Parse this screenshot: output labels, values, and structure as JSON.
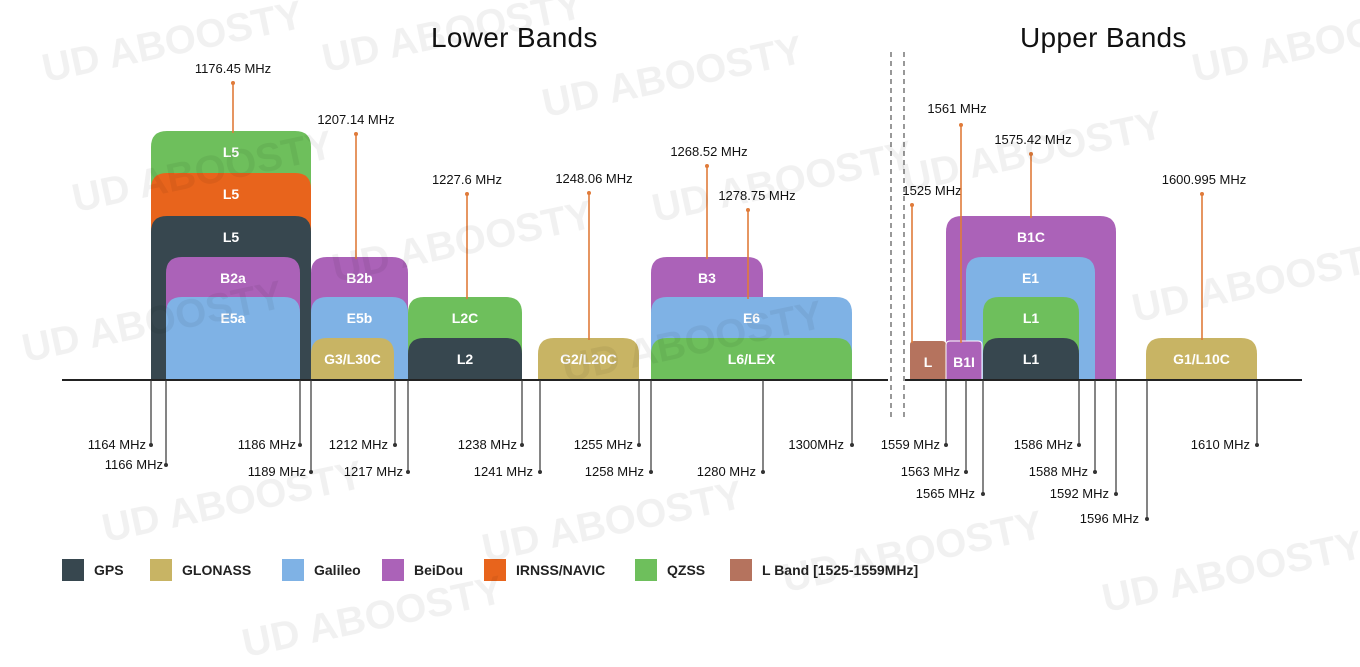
{
  "titles": {
    "lower": "Lower Bands",
    "upper": "Upper Bands"
  },
  "watermark": "ABOOSTY",
  "colors": {
    "GPS": "#37474f",
    "GLONASS": "#c8b464",
    "Galileo": "#7fb2e5",
    "BeiDou": "#ab62b8",
    "IRNSS/NAVIC": "#e8641c",
    "QZSS": "#6ebf5c",
    "L Band": "#b5735e",
    "axis": "#222222",
    "center_line": "#e07b3a"
  },
  "legend": [
    {
      "label": "GPS",
      "color": "#37474f"
    },
    {
      "label": "GLONASS",
      "color": "#c8b464"
    },
    {
      "label": "Galileo",
      "color": "#7fb2e5"
    },
    {
      "label": "BeiDou",
      "color": "#ab62b8"
    },
    {
      "label": "IRNSS/NAVIC",
      "color": "#e8641c"
    },
    {
      "label": "QZSS",
      "color": "#6ebf5c"
    },
    {
      "label": "L Band [1525-1559MHz]",
      "color": "#b5735e"
    }
  ],
  "bands": [
    {
      "label": "L5",
      "system": "QZSS",
      "from": "1164 MHz",
      "to": "1189 MHz",
      "layer": 6
    },
    {
      "label": "L5",
      "system": "IRNSS/NAVIC",
      "from": "1164 MHz",
      "to": "1189 MHz",
      "layer": 5
    },
    {
      "label": "L5",
      "system": "GPS",
      "from": "1164 MHz",
      "to": "1189 MHz",
      "layer": 4
    },
    {
      "label": "B2a",
      "system": "BeiDou",
      "from": "1166 MHz",
      "to": "1186 MHz",
      "layer": 3
    },
    {
      "label": "E5a",
      "system": "Galileo",
      "from": "1166 MHz",
      "to": "1186 MHz",
      "layer": 2
    },
    {
      "label": "B2b",
      "system": "BeiDou",
      "from": "1189 MHz",
      "to": "1217 MHz",
      "layer": 3
    },
    {
      "label": "E5b",
      "system": "Galileo",
      "from": "1189 MHz",
      "to": "1217 MHz",
      "layer": 2
    },
    {
      "label": "G3/L30C",
      "system": "GLONASS",
      "from": "1189 MHz",
      "to": "1212 MHz",
      "layer": 1
    },
    {
      "label": "L2C",
      "system": "QZSS",
      "from": "1217 MHz",
      "to": "1238 MHz",
      "layer": 2
    },
    {
      "label": "L2",
      "system": "GPS",
      "from": "1217 MHz",
      "to": "1238 MHz",
      "layer": 1
    },
    {
      "label": "G2/L20C",
      "system": "GLONASS",
      "from": "1241 MHz",
      "to": "1255 MHz",
      "layer": 1
    },
    {
      "label": "B3",
      "system": "BeiDou",
      "from": "1258 MHz",
      "to": "1280 MHz",
      "layer": 3
    },
    {
      "label": "E6",
      "system": "Galileo",
      "from": "1258 MHz",
      "to": "1300MHz",
      "layer": 2
    },
    {
      "label": "L6/LEX",
      "system": "QZSS",
      "from": "1258 MHz",
      "to": "1300MHz",
      "layer": 1
    },
    {
      "label": "L",
      "system": "L Band",
      "from": "1525 MHz",
      "to": "1559 MHz",
      "layer": 1
    },
    {
      "label": "B1I",
      "system": "BeiDou",
      "from": "1559 MHz",
      "to": "1563 MHz",
      "layer": 1
    },
    {
      "label": "B1C",
      "system": "BeiDou",
      "from": "1559 MHz",
      "to": "1592 MHz",
      "layer": 4
    },
    {
      "label": "E1",
      "system": "Galileo",
      "from": "1563 MHz",
      "to": "1588 MHz",
      "layer": 3
    },
    {
      "label": "L1",
      "system": "QZSS",
      "from": "1565 MHz",
      "to": "1586 MHz",
      "layer": 2
    },
    {
      "label": "L1",
      "system": "GPS",
      "from": "1565 MHz",
      "to": "1586 MHz",
      "layer": 1
    },
    {
      "label": "G1/L10C",
      "system": "GLONASS",
      "from": "1596 MHz",
      "to": "1610 MHz",
      "layer": 1
    }
  ],
  "center_frequencies": [
    "1176.45 MHz",
    "1207.14 MHz",
    "1227.6 MHz",
    "1248.06 MHz",
    "1268.52 MHz",
    "1278.75 MHz",
    "1525 MHz",
    "1561 MHz",
    "1575.42 MHz",
    "1600.995 MHz"
  ],
  "edge_frequencies": [
    "1164 MHz",
    "1166 MHz",
    "1186 MHz",
    "1189 MHz",
    "1212 MHz",
    "1217 MHz",
    "1238 MHz",
    "1241 MHz",
    "1255 MHz",
    "1258 MHz",
    "1280 MHz",
    "1300MHz",
    "1559 MHz",
    "1563 MHz",
    "1565 MHz",
    "1586 MHz",
    "1588 MHz",
    "1592 MHz",
    "1596 MHz",
    "1610 MHz"
  ]
}
